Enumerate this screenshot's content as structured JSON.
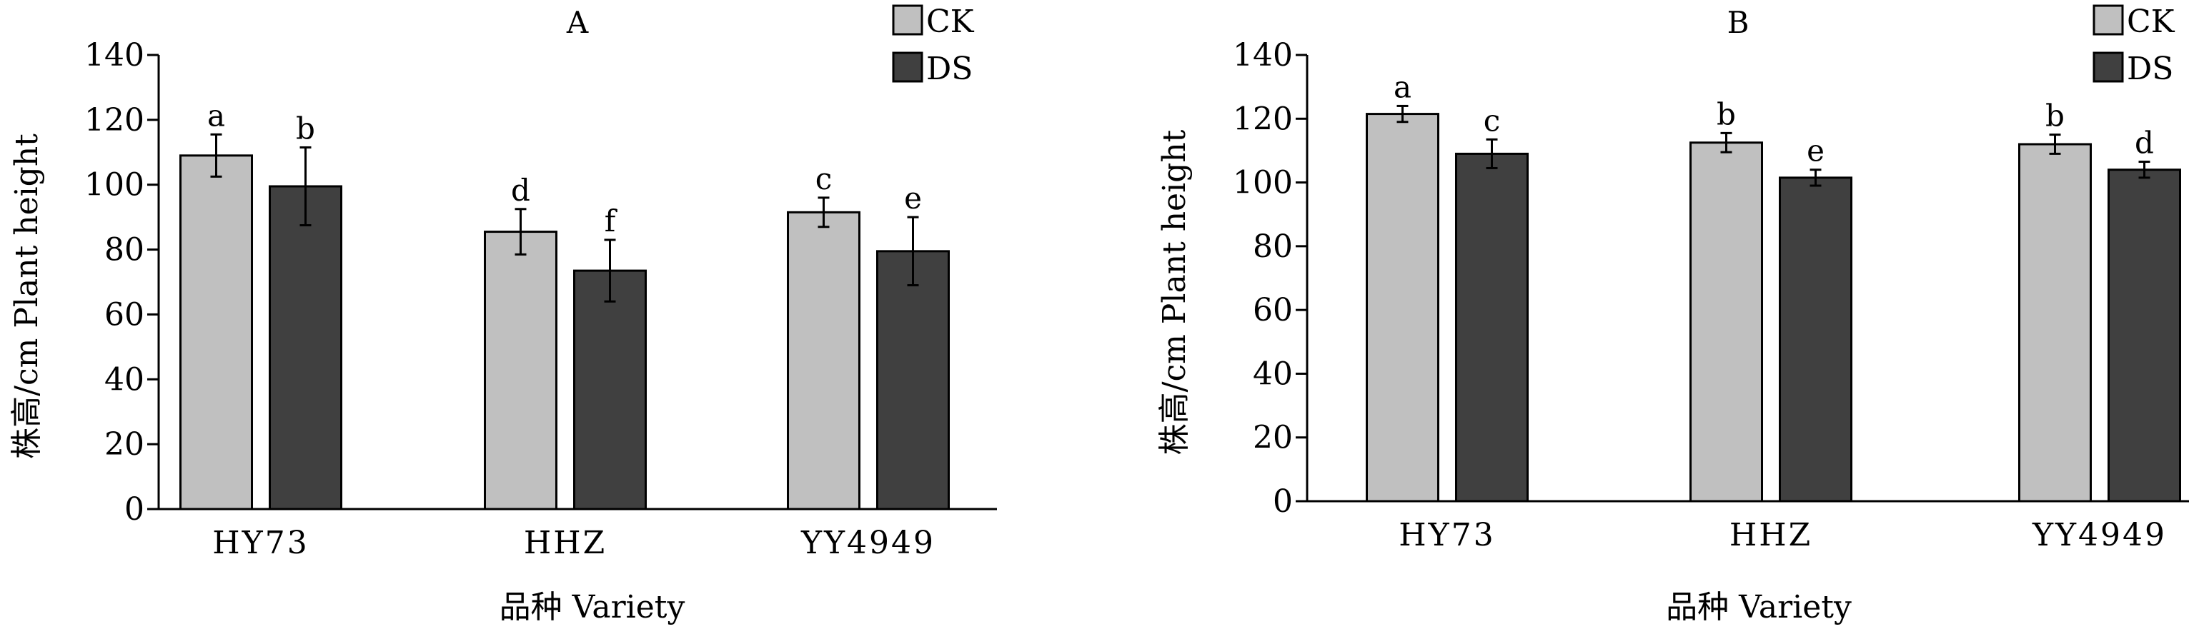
{
  "chart_data": [
    {
      "type": "bar",
      "title": "A",
      "xlabel": "品种 Variety",
      "ylabel": "株高/cm Plant height",
      "ylim": [
        0,
        140
      ],
      "yticks": [
        0,
        20,
        40,
        60,
        80,
        100,
        120,
        140
      ],
      "categories": [
        "HY73",
        "HHZ",
        "YY4949"
      ],
      "legend_position": "top-right",
      "series": [
        {
          "name": "CK",
          "color": "#c0c0c0",
          "values": [
            109,
            85.5,
            91.5
          ],
          "errors": [
            6.5,
            7,
            4.5
          ],
          "letters": [
            "a",
            "d",
            "c"
          ]
        },
        {
          "name": "DS",
          "color": "#404040",
          "values": [
            99.5,
            73.5,
            79.5
          ],
          "errors": [
            12,
            9.5,
            10.5
          ],
          "letters": [
            "b",
            "f",
            "e"
          ]
        }
      ]
    },
    {
      "type": "bar",
      "title": "B",
      "xlabel": "品种 Variety",
      "ylabel": "株高/cm Plant height",
      "ylim": [
        0,
        140
      ],
      "yticks": [
        0,
        20,
        40,
        60,
        80,
        100,
        120,
        140
      ],
      "categories": [
        "HY73",
        "HHZ",
        "YY4949"
      ],
      "legend_position": "top-right",
      "series": [
        {
          "name": "CK",
          "color": "#c0c0c0",
          "values": [
            121.5,
            112.5,
            112
          ],
          "errors": [
            2.5,
            3,
            3
          ],
          "letters": [
            "a",
            "b",
            "b"
          ]
        },
        {
          "name": "DS",
          "color": "#404040",
          "values": [
            109,
            101.5,
            104
          ],
          "errors": [
            4.5,
            2.5,
            2.5
          ],
          "letters": [
            "c",
            "e",
            "d"
          ]
        }
      ]
    }
  ]
}
